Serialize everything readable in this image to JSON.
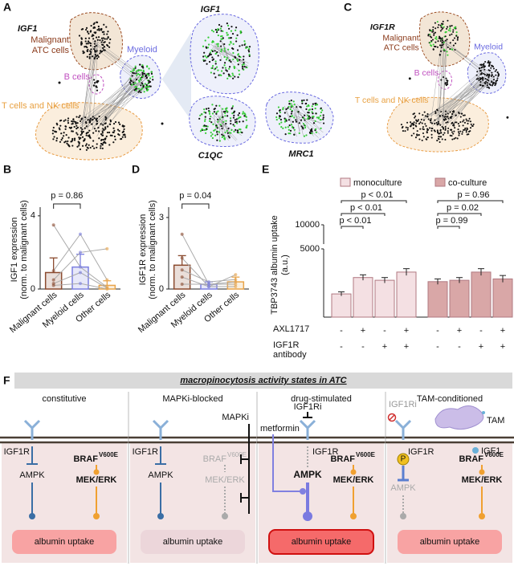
{
  "figure": {
    "A": {
      "letter": "A",
      "gene": "IGF1",
      "malignant": [
        "Malignant",
        "ATC cells"
      ],
      "myeloid": "Myeloid",
      "b_cells": "B cells",
      "t_cells": "T cells and NK cells",
      "zoom_genes": [
        "IGF1",
        "C1QC",
        "MRC1"
      ]
    },
    "C": {
      "letter": "C",
      "gene": "IGF1R",
      "malignant": [
        "Malignant",
        "ATC cells"
      ],
      "myeloid": "Myeloid",
      "b_cells": "B cells",
      "t_cells": "T cells and NK cells"
    }
  },
  "chart_data": [
    {
      "type": "bar",
      "letter": "B",
      "ylabel": [
        "IGF1 expression",
        "(norm. to malignant cells)"
      ],
      "categories": [
        "Malignant cells",
        "Myeloid cells",
        "Other cells"
      ],
      "values": [
        0.9,
        1.2,
        0.2
      ],
      "errors": [
        0.8,
        0.7,
        0.25
      ],
      "colors": [
        "#8b4a2e",
        "#7b7fe0",
        "#e8a44a"
      ],
      "samples": [
        [
          3.5,
          1.2,
          0.1
        ],
        [
          1.0,
          3.0,
          0.5
        ],
        [
          0.5,
          2.0,
          2.2
        ],
        [
          0.3,
          0.9,
          0.05
        ],
        [
          0.2,
          0.3,
          0.0
        ]
      ],
      "ylim": [
        0,
        4.3
      ],
      "yticks": [
        0,
        4
      ],
      "annotation": "p = 0.86"
    },
    {
      "type": "bar",
      "letter": "D",
      "ylabel": [
        "IGF1R expression",
        "(norm. to malignant cells)"
      ],
      "categories": [
        "Malignant cells",
        "Myeloid cells",
        "Other cells"
      ],
      "values": [
        1.0,
        0.2,
        0.3
      ],
      "errors": [
        0.4,
        0.1,
        0.2
      ],
      "colors": [
        "#8b4a2e",
        "#7b7fe0",
        "#e8a44a"
      ],
      "samples": [
        [
          2.3,
          0.2,
          0.3
        ],
        [
          1.3,
          0.1,
          0.6
        ],
        [
          0.8,
          0.3,
          0.4
        ],
        [
          0.5,
          0.1,
          0.1
        ],
        [
          0.2,
          0.2,
          0.2
        ]
      ],
      "ylim": [
        0,
        3.3
      ],
      "yticks": [
        0,
        3
      ],
      "annotation": "p = 0.04"
    },
    {
      "type": "grouped-bar",
      "letter": "E",
      "ylabel": [
        "TBP3743 albumin uptake",
        "(a.u.)"
      ],
      "series": [
        {
          "name": "monoculture",
          "color": "#f4e0e3",
          "values": [
            1700,
            2900,
            2700,
            3300
          ],
          "errors": [
            150,
            200,
            200,
            250
          ],
          "annotations": [
            "p < 0.01",
            "p < 0.01",
            "p < 0.01"
          ]
        },
        {
          "name": "co-culture",
          "color": "#d9a7a7",
          "values": [
            2600,
            2700,
            3300,
            2800
          ],
          "errors": [
            200,
            200,
            250,
            250
          ],
          "annotations": [
            "p = 0.96",
            "p = 0.02",
            "p = 0.99"
          ]
        }
      ],
      "treatments": [
        {
          "label": [
            "AXL1717"
          ],
          "levels": [
            "-",
            "+",
            "-",
            "+",
            "-",
            "+",
            "-",
            "+"
          ]
        },
        {
          "label": [
            "IGF1R",
            "antibody"
          ],
          "levels": [
            "-",
            "-",
            "+",
            "+",
            "-",
            "-",
            "+",
            "+"
          ]
        }
      ],
      "ylim": [
        0,
        10000
      ],
      "yticks": [
        5000,
        10000
      ],
      "broken_axis": true
    }
  ],
  "F": {
    "letter": "F",
    "title": "macropinocytosis activity states in ATC",
    "states": [
      {
        "title": "constitutive",
        "receptor": "IGF1R",
        "braf": "BRAF",
        "mutation": "V600E",
        "ampk": "AMPK",
        "mek": "MEK/ERK",
        "output": "albumin uptake"
      },
      {
        "title": "MAPKi-blocked",
        "receptor": "IGF1R",
        "braf": "BRAF",
        "mutation": "V600E",
        "ampk": "AMPK",
        "mek": "MEK/ERK",
        "output": "albumin uptake",
        "drug": "MAPKi"
      },
      {
        "title": "drug-stimulated",
        "receptor": "IGF1R",
        "braf": "BRAF",
        "mutation": "V600E",
        "ampk": "AMPK",
        "mek": "MEK/ERK",
        "output": "albumin uptake",
        "drug": "IGF1Ri",
        "drug2": "metformin"
      },
      {
        "title": "TAM-conditioned",
        "receptor": "IGF1R",
        "braf": "BRAF",
        "mutation": "V600E",
        "ampk": "AMPK",
        "mek": "MEK/ERK",
        "output": "albumin uptake",
        "drug": "IGF1Ri",
        "cell": "TAM",
        "ligand": "IGF1",
        "phospho": "P"
      }
    ]
  }
}
